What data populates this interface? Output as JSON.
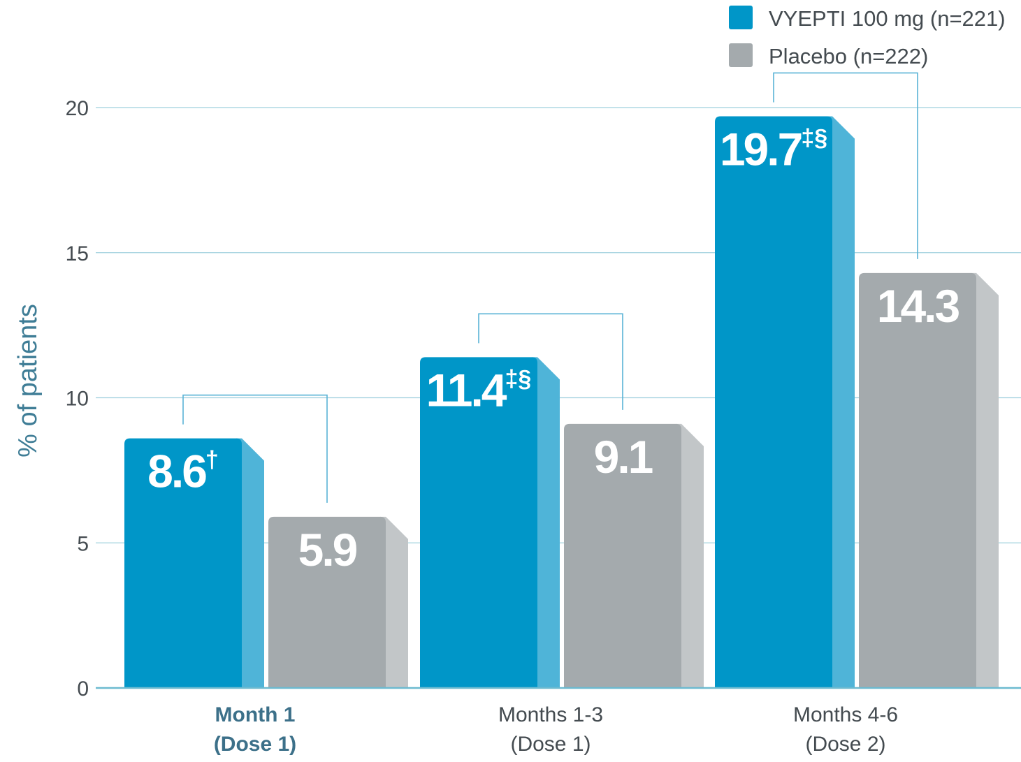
{
  "chart_data": {
    "type": "bar",
    "ylabel": "% of patients",
    "ylim": [
      0,
      20
    ],
    "yticks": [
      0,
      5,
      10,
      15,
      20
    ],
    "grid": true,
    "legend_position": "top-right",
    "categories": [
      {
        "line1": "Month 1",
        "line2": "(Dose 1)",
        "highlight": true
      },
      {
        "line1": "Months 1-3",
        "line2": "(Dose 1)",
        "highlight": false
      },
      {
        "line1": "Months 4-6",
        "line2": "(Dose 2)",
        "highlight": false
      }
    ],
    "series": [
      {
        "name": "VYEPTI 100 mg (n=221)",
        "color": "#0096c8",
        "side_color": "#4fb4d8",
        "values": [
          8.6,
          11.4,
          19.7
        ],
        "labels": [
          "8.6",
          "11.4",
          "19.7"
        ],
        "marks": [
          "†",
          "‡§",
          "‡§"
        ]
      },
      {
        "name": "Placebo (n=222)",
        "color": "#a4aaad",
        "side_color": "#c2c6c8",
        "values": [
          5.9,
          9.1,
          14.3
        ],
        "labels": [
          "5.9",
          "9.1",
          "14.3"
        ],
        "marks": [
          "",
          "",
          ""
        ]
      }
    ],
    "colors": {
      "grid": "#9fd0de",
      "axis": "#6cbad0",
      "bracket": "#5ab3d6"
    }
  }
}
